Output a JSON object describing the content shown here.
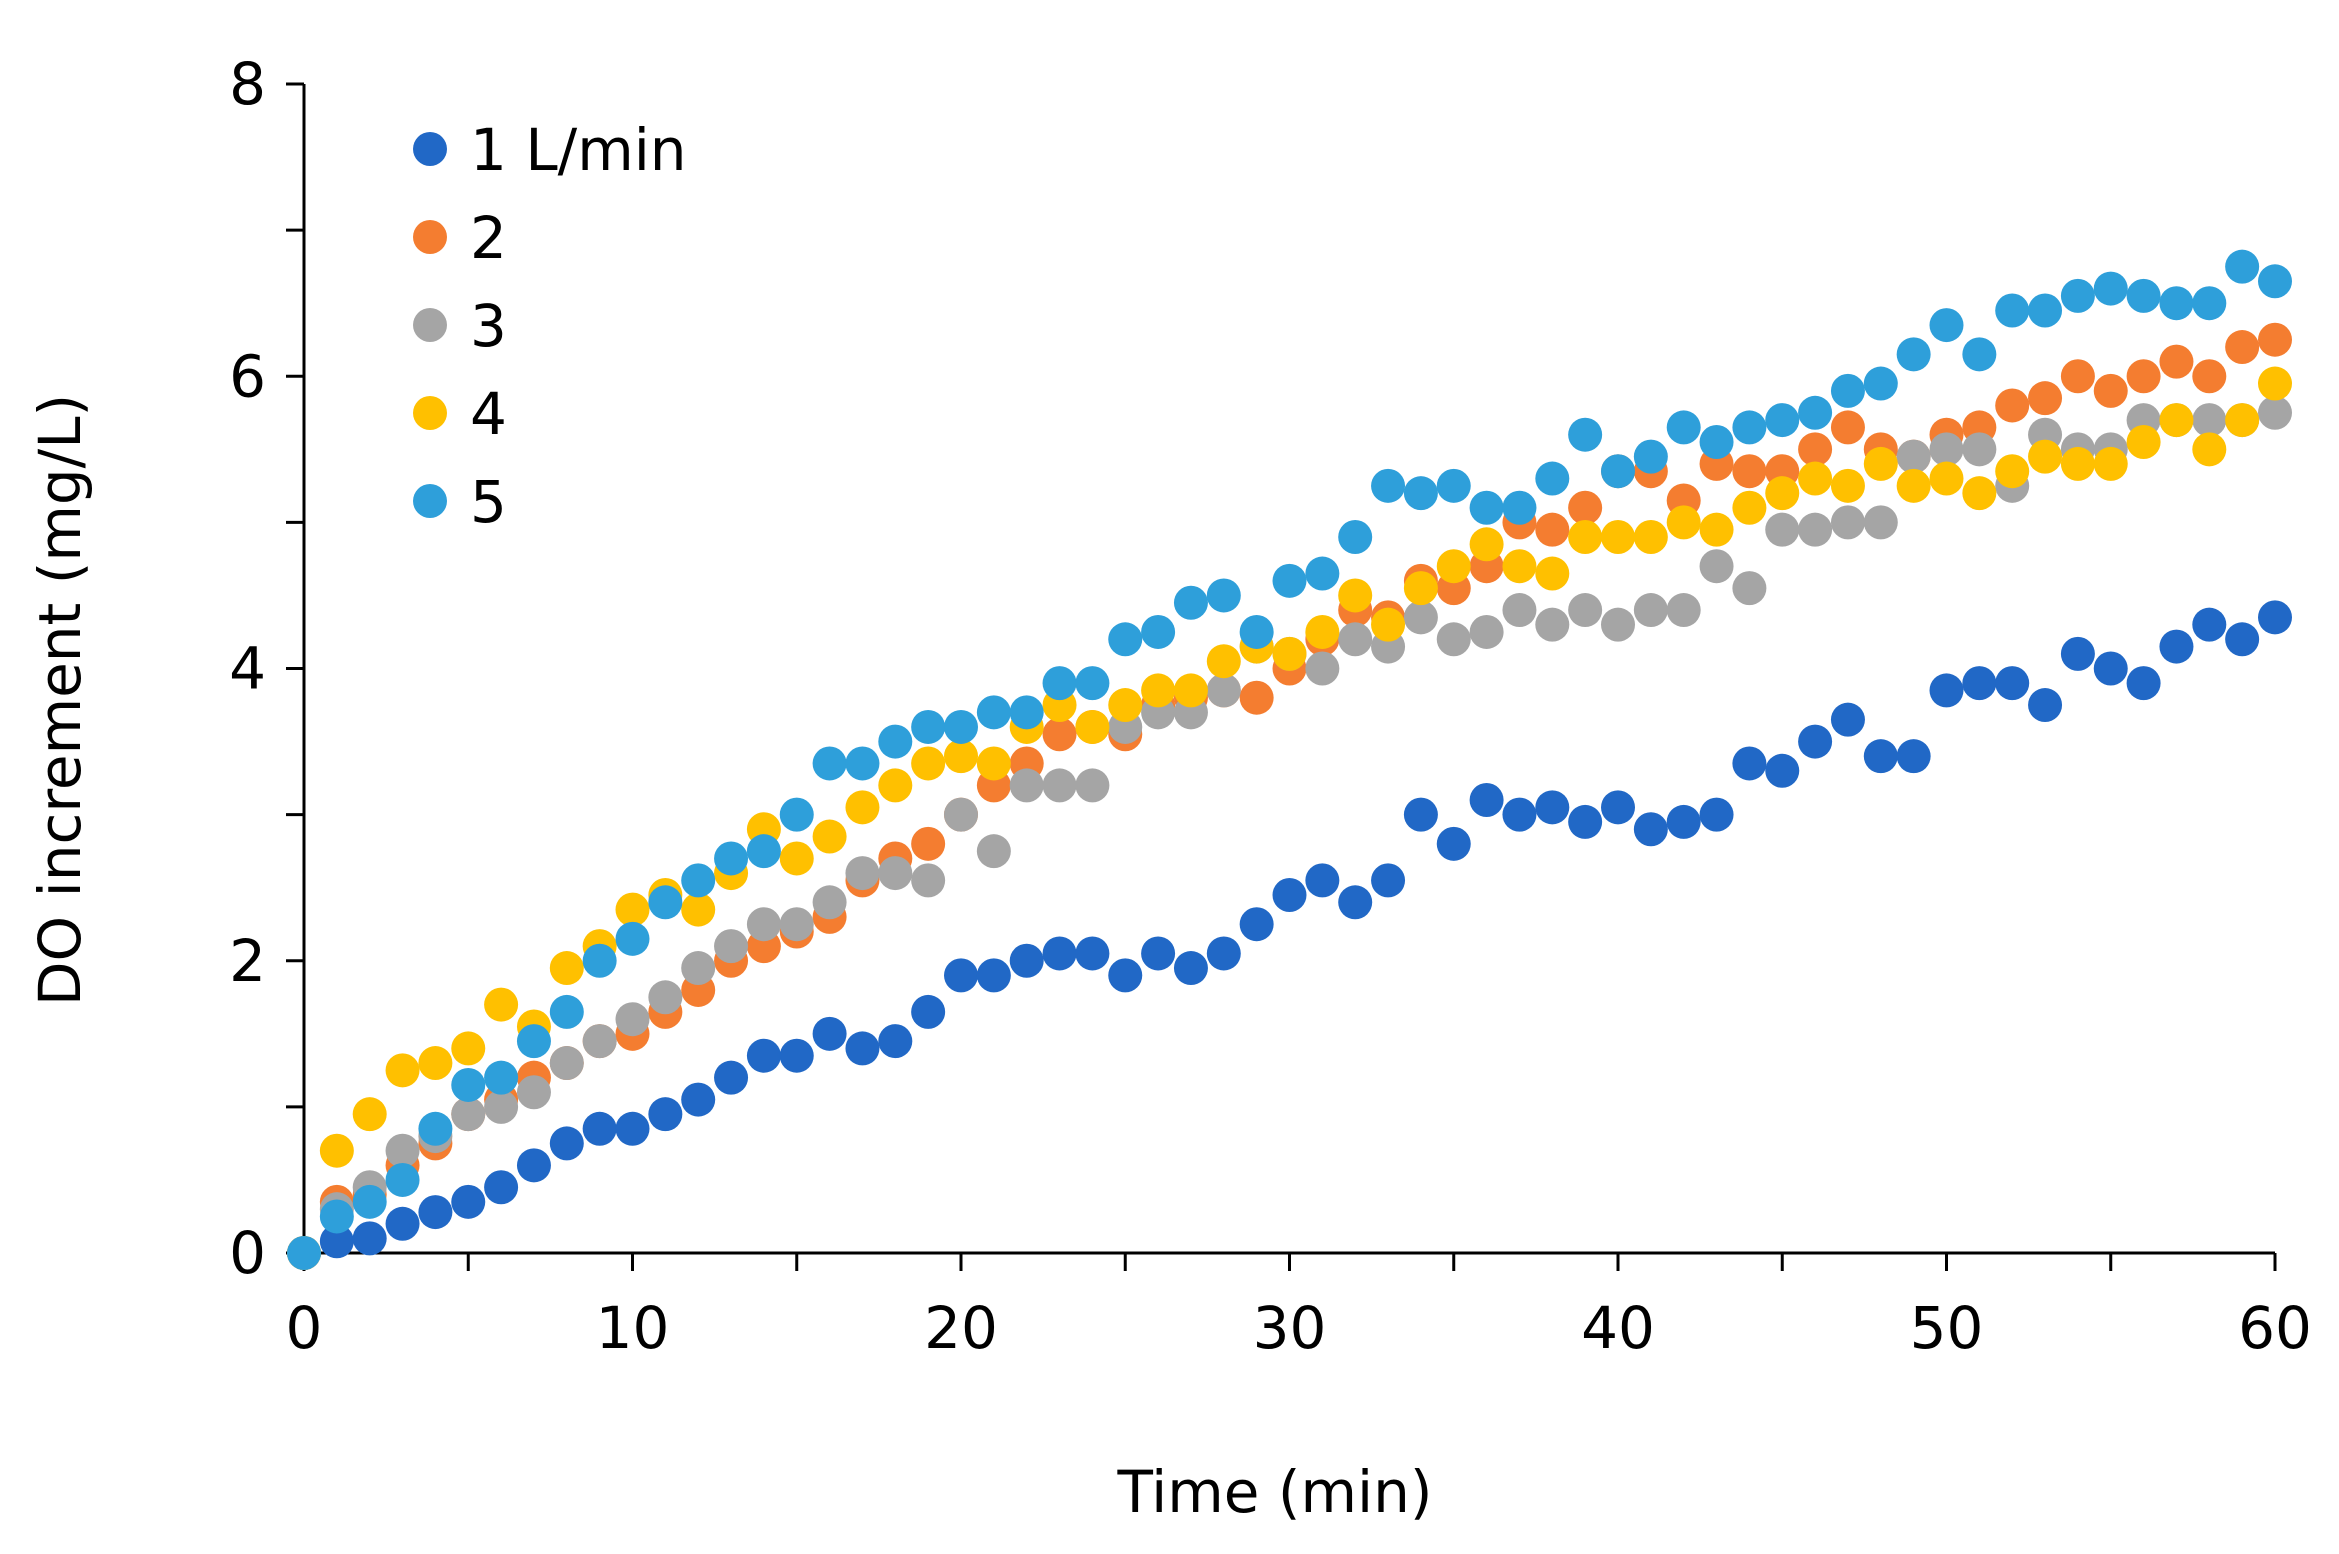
{
  "chart_data": {
    "type": "scatter",
    "title": "",
    "xlabel": "Time (min)",
    "ylabel": "DO increment (mg/L)",
    "xlim": [
      0,
      60
    ],
    "ylim": [
      0,
      8
    ],
    "xticks": [
      0,
      10,
      20,
      30,
      40,
      50,
      60
    ],
    "yticks": [
      0,
      2,
      4,
      6,
      8
    ],
    "grid": false,
    "legend_position": "top-left",
    "x": [
      0,
      1,
      2,
      3,
      4,
      5,
      6,
      7,
      8,
      9,
      10,
      11,
      12,
      13,
      14,
      15,
      16,
      17,
      18,
      19,
      20,
      21,
      22,
      23,
      24,
      25,
      26,
      27,
      28,
      29,
      30,
      31,
      32,
      33,
      34,
      35,
      36,
      37,
      38,
      39,
      40,
      41,
      42,
      43,
      44,
      45,
      46,
      47,
      48,
      49,
      50,
      51,
      52,
      53,
      54,
      55,
      56,
      57,
      58,
      59,
      60
    ],
    "series": [
      {
        "name": "1 L/min",
        "color": "#2168C6",
        "values": [
          0,
          0.08,
          0.1,
          0.2,
          0.28,
          0.35,
          0.45,
          0.6,
          0.75,
          0.85,
          0.85,
          0.95,
          1.05,
          1.2,
          1.35,
          1.35,
          1.5,
          1.4,
          1.45,
          1.65,
          1.9,
          1.9,
          2.0,
          2.05,
          2.05,
          1.9,
          2.05,
          1.95,
          2.05,
          2.25,
          2.45,
          2.55,
          2.4,
          2.55,
          3.0,
          2.8,
          3.1,
          3.0,
          3.05,
          2.95,
          3.05,
          2.9,
          2.95,
          3.0,
          3.35,
          3.3,
          3.5,
          3.65,
          3.4,
          3.4,
          3.85,
          3.9,
          3.9,
          3.75,
          4.1,
          4.0,
          3.9,
          4.15,
          4.3,
          4.2,
          4.35
        ]
      },
      {
        "name": "2",
        "color": "#F47D30",
        "values": [
          0,
          0.35,
          0.4,
          0.6,
          0.75,
          0.95,
          1.05,
          1.2,
          1.3,
          1.45,
          1.5,
          1.65,
          1.8,
          2.0,
          2.1,
          2.2,
          2.3,
          2.55,
          2.7,
          2.8,
          3.0,
          3.2,
          3.35,
          3.55,
          3.6,
          3.55,
          3.75,
          3.8,
          3.85,
          3.8,
          4.0,
          4.2,
          4.4,
          4.35,
          4.6,
          4.55,
          4.7,
          5.0,
          4.95,
          5.1,
          5.35,
          5.35,
          5.15,
          5.4,
          5.35,
          5.35,
          5.5,
          5.65,
          5.5,
          5.45,
          5.6,
          5.65,
          5.8,
          5.85,
          6.0,
          5.9,
          6.0,
          6.1,
          6.0,
          6.2,
          6.25
        ]
      },
      {
        "name": "3",
        "color": "#A5A5A5",
        "values": [
          0,
          0.3,
          0.45,
          0.7,
          0.8,
          0.95,
          1.0,
          1.1,
          1.3,
          1.45,
          1.6,
          1.75,
          1.95,
          2.1,
          2.25,
          2.25,
          2.4,
          2.6,
          2.6,
          2.55,
          3.0,
          2.75,
          3.2,
          3.2,
          3.2,
          3.6,
          3.7,
          3.7,
          3.85,
          4.15,
          4.1,
          4.0,
          4.2,
          4.15,
          4.35,
          4.2,
          4.25,
          4.4,
          4.3,
          4.4,
          4.3,
          4.4,
          4.4,
          4.7,
          4.55,
          4.95,
          4.95,
          5.0,
          5.0,
          5.45,
          5.5,
          5.5,
          5.25,
          5.6,
          5.5,
          5.5,
          5.7,
          5.7,
          5.7,
          5.7,
          5.75
        ]
      },
      {
        "name": "4",
        "color": "#FFC000",
        "values": [
          0,
          0.7,
          0.95,
          1.25,
          1.3,
          1.4,
          1.7,
          1.55,
          1.95,
          2.1,
          2.35,
          2.45,
          2.35,
          2.6,
          2.9,
          2.7,
          2.85,
          3.05,
          3.2,
          3.35,
          3.4,
          3.35,
          3.6,
          3.75,
          3.6,
          3.75,
          3.85,
          3.85,
          4.05,
          4.15,
          4.1,
          4.25,
          4.5,
          4.3,
          4.55,
          4.7,
          4.85,
          4.7,
          4.65,
          4.9,
          4.9,
          4.9,
          5.0,
          4.95,
          5.1,
          5.2,
          5.3,
          5.25,
          5.4,
          5.25,
          5.3,
          5.2,
          5.35,
          5.45,
          5.4,
          5.4,
          5.55,
          5.7,
          5.5,
          5.7,
          5.95
        ]
      },
      {
        "name": "5",
        "color": "#2E9FDA",
        "values": [
          0,
          0.25,
          0.35,
          0.5,
          0.85,
          1.15,
          1.2,
          1.45,
          1.65,
          2.0,
          2.15,
          2.4,
          2.55,
          2.7,
          2.75,
          3.0,
          3.35,
          3.35,
          3.5,
          3.6,
          3.6,
          3.7,
          3.7,
          3.9,
          3.9,
          4.2,
          4.25,
          4.45,
          4.5,
          4.25,
          4.6,
          4.65,
          4.9,
          5.25,
          5.2,
          5.25,
          5.1,
          5.1,
          5.3,
          5.6,
          5.35,
          5.45,
          5.65,
          5.55,
          5.65,
          5.7,
          5.75,
          5.9,
          5.95,
          6.15,
          6.35,
          6.15,
          6.45,
          6.45,
          6.55,
          6.6,
          6.55,
          6.5,
          6.5,
          6.75,
          6.65
        ]
      }
    ]
  }
}
